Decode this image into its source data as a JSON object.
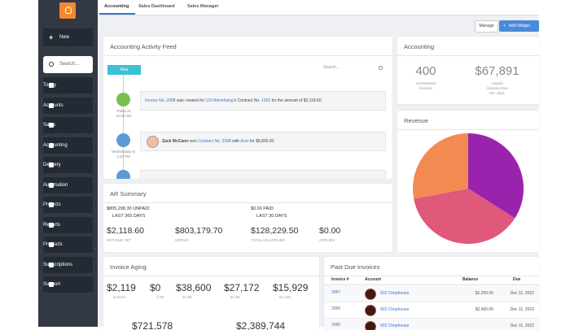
{
  "tabs": [
    "Accounting",
    "Sales Dashboard",
    "Sales Manager"
  ],
  "sidebar": {
    "new": "New",
    "search_placeholder": "Search...",
    "items": [
      "Today",
      "Accounts",
      "Sales",
      "Accounting",
      "Delivery",
      "Automation",
      "Projects",
      "Reports",
      "Products",
      "Subscriptions",
      "Support"
    ]
  },
  "toolbar": {
    "manage": "Manage",
    "add_widget": "Add Widget"
  },
  "activity_feed": {
    "title": "Accounting Activity Feed",
    "search_placeholder": "Search...",
    "now": "Now",
    "entries": [
      {
        "time": "Today at 12:05 AM",
        "segments": [
          {
            "text": "Invoice No. 2988",
            "link": true
          },
          {
            "text": " was created for ",
            "link": false
          },
          {
            "text": "123 Advertising",
            "link": true
          },
          {
            "text": "'s Contract No. ",
            "link": false
          },
          {
            "text": "1001",
            "link": true
          },
          {
            "text": " for the amount of $2,118.60.",
            "link": false
          }
        ]
      },
      {
        "time": "Wednesday at 1:57 PM",
        "segments": [
          {
            "text": "Zack McCann",
            "link": false
          },
          {
            "text": " won ",
            "link": false
          },
          {
            "text": "Contract No. 2398",
            "link": true
          },
          {
            "text": " with ",
            "link": false
          },
          {
            "text": "Acer",
            "link": true
          },
          {
            "text": " for $8,800.00.",
            "link": false
          }
        ]
      }
    ]
  },
  "accounting": {
    "title": "Accounting",
    "stats": [
      {
        "value": "400",
        "label": "Unreviewed Invoices"
      },
      {
        "value": "$67,891",
        "label": "Unpaid Invoices Due 90+ days"
      }
    ]
  },
  "revenue": {
    "title": "Revenue",
    "chart_data": {
      "type": "pie",
      "values": [
        34,
        38,
        28
      ],
      "colors": [
        "#9a23ad",
        "#e0587a",
        "#f28a52"
      ]
    }
  },
  "ar_summary": {
    "title": "AR Summary",
    "top": [
      {
        "value": "$805,298.30 UNPAID",
        "label": "LAST 365 DAYS"
      },
      {
        "value": "$0.00 PAID",
        "label": "LAST 30 DAYS"
      }
    ],
    "stats": [
      {
        "value": "$2,118.60",
        "label": "NOT DUE YET"
      },
      {
        "value": "$803,179.70",
        "label": "UNPAID"
      },
      {
        "value": "$128,229.50",
        "label": "TOTAL UN-APPLIED"
      },
      {
        "value": "$0.00",
        "label": "APPLIED"
      }
    ]
  },
  "invoice_aging": {
    "title": "Invoice Aging",
    "stats": [
      {
        "value": "$2,119",
        "label": "Current"
      },
      {
        "value": "$0",
        "label": "1-30"
      },
      {
        "value": "$38,600",
        "label": "31-60"
      },
      {
        "value": "$27,172",
        "label": "61-90"
      },
      {
        "value": "$15,929",
        "label": "91-120"
      }
    ],
    "second_row": [
      "$721,578",
      "$2,389,744"
    ]
  },
  "past_due": {
    "title": "Past Due Invoices",
    "columns": [
      "Invoice #",
      "Account",
      "Balance",
      "Due"
    ],
    "rows": [
      {
        "invoice": "2987",
        "account": "602 Chophouse",
        "balance": "$1,200.00",
        "due": "Dec 11, 2022"
      },
      {
        "invoice": "2986",
        "account": "602 Chophouse",
        "balance": "$2,400.00",
        "due": "Dec 11, 2022"
      },
      {
        "invoice": "2985",
        "account": "602 Chophouse",
        "due": "Dec 11, 2022"
      }
    ]
  }
}
